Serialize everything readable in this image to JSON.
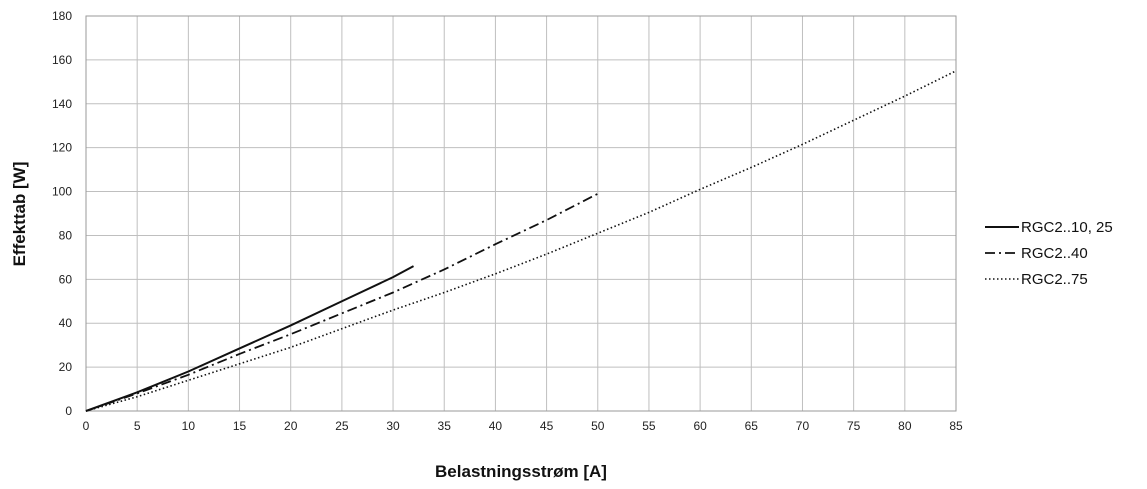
{
  "chart_data": {
    "type": "line",
    "title": "",
    "xlabel": "Belastningsstrøm [A]",
    "ylabel": "Effekttab [W]",
    "xlim": [
      0,
      85
    ],
    "ylim": [
      0,
      180
    ],
    "xticks": [
      "0",
      "5",
      "10",
      "15",
      "20",
      "25",
      "30",
      "35",
      "40",
      "45",
      "50",
      "55",
      "60",
      "65",
      "70",
      "75",
      "80",
      "85"
    ],
    "yticks": [
      "0",
      "20",
      "40",
      "60",
      "80",
      "100",
      "120",
      "140",
      "160",
      "180"
    ],
    "grid": true,
    "legend_position": "right",
    "series": [
      {
        "name": "RGC2..10, 25",
        "style": "solid",
        "color": "#111111",
        "x": [
          0,
          5,
          10,
          15,
          20,
          25,
          30,
          32
        ],
        "y": [
          0,
          8.5,
          18,
          28.5,
          39,
          50,
          61,
          66
        ]
      },
      {
        "name": "RGC2..40",
        "style": "dashdot",
        "color": "#111111",
        "x": [
          0,
          5,
          10,
          15,
          20,
          25,
          30,
          35,
          40,
          45,
          50
        ],
        "y": [
          0,
          8,
          16.5,
          26,
          35,
          44.5,
          54,
          64.5,
          76,
          87,
          99
        ]
      },
      {
        "name": "RGC2..75",
        "style": "dotted",
        "color": "#111111",
        "x": [
          0,
          5,
          10,
          15,
          20,
          25,
          30,
          35,
          40,
          45,
          50,
          55,
          60,
          65,
          70,
          75,
          80,
          85
        ],
        "y": [
          0,
          6.5,
          14,
          21.5,
          29,
          37.5,
          46,
          54,
          62.5,
          71.5,
          81,
          90.5,
          101,
          111,
          121.5,
          132.5,
          143.5,
          155
        ]
      }
    ]
  }
}
